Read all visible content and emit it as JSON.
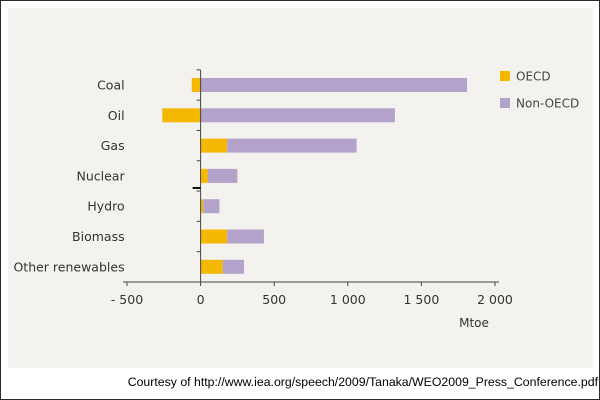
{
  "chart_data": {
    "type": "bar",
    "orientation": "horizontal",
    "stacked": true,
    "categories": [
      "Coal",
      "Oil",
      "Gas",
      "Nuclear",
      "Hydro",
      "Biomass",
      "Other renewables"
    ],
    "series": [
      {
        "name": "OECD",
        "color": "#f5b800",
        "values": [
          -60,
          -260,
          180,
          50,
          18,
          180,
          150
        ]
      },
      {
        "name": "Non-OECD",
        "color": "#b3a3cb",
        "values": [
          1810,
          1320,
          880,
          200,
          110,
          250,
          145
        ]
      }
    ],
    "xlim": [
      -500,
      2000
    ],
    "xticks": [
      -500,
      0,
      500,
      1000,
      1500,
      2000
    ],
    "tick_labels": [
      "- 500",
      "0",
      "500",
      "1 000",
      "1 500",
      "2 000"
    ],
    "xlabel": "Mtoe",
    "legend_position": "top-right",
    "grid": false
  },
  "credit": "Courtesy of http://www.iea.org/speech/2009/Tanaka/WEO2009_Press_Conference.pdf"
}
